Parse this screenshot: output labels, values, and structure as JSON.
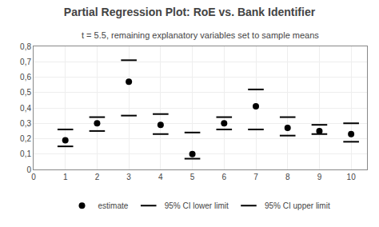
{
  "chart_data": {
    "type": "scatter",
    "title": "Partial Regression Plot: RoE vs. Bank Identifier",
    "subtitle": "t = 5.5, remaining explanatory variables set to sample means",
    "x": [
      1,
      2,
      3,
      4,
      5,
      6,
      7,
      8,
      9,
      10
    ],
    "series": [
      {
        "name": "estimate",
        "color": "#000000",
        "marker": "circle",
        "values": [
          0.19,
          0.3,
          0.57,
          0.29,
          0.1,
          0.3,
          0.41,
          0.27,
          0.25,
          0.23
        ]
      },
      {
        "name": "95% CI lower limit",
        "color": "#000000",
        "marker": "line-ew",
        "values": [
          0.15,
          0.25,
          0.35,
          0.23,
          0.07,
          0.26,
          0.26,
          0.22,
          0.23,
          0.18
        ]
      },
      {
        "name": "95% CI upper limit",
        "color": "#000000",
        "marker": "line-ew",
        "values": [
          0.26,
          0.34,
          0.71,
          0.36,
          0.24,
          0.34,
          0.52,
          0.34,
          0.29,
          0.3
        ]
      }
    ],
    "xlim": [
      0,
      10.5
    ],
    "ylim": [
      0,
      0.8
    ],
    "xticks": [
      0,
      1,
      2,
      3,
      4,
      5,
      6,
      7,
      8,
      9,
      10
    ],
    "yticks": [
      0,
      {
        "value": 0.1,
        "label": "0,1"
      },
      {
        "value": 0.2,
        "label": "0,2"
      },
      {
        "value": 0.3,
        "label": "0,3"
      },
      {
        "value": 0.4,
        "label": "0,4"
      },
      {
        "value": 0.5,
        "label": "0,5"
      },
      {
        "value": 0.6,
        "label": "0,6"
      },
      {
        "value": 0.7,
        "label": "0,7"
      },
      {
        "value": 0.8,
        "label": "0,8"
      }
    ],
    "grid": true,
    "legend": "bottom"
  }
}
